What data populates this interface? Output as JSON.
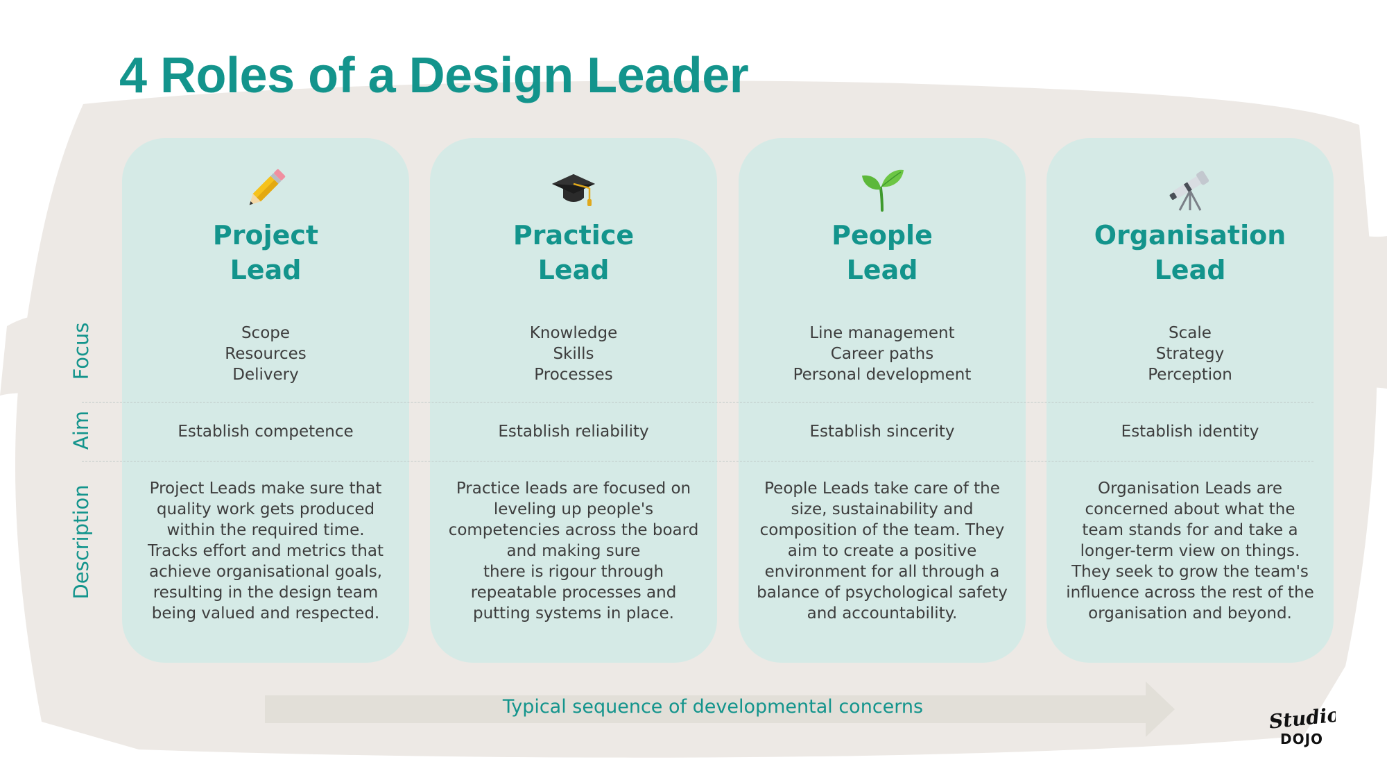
{
  "title": "4 Roles of a Design Leader",
  "row_labels": {
    "focus": "Focus",
    "aim": "Aim",
    "description": "Description"
  },
  "roles": [
    {
      "icon": "pencil-icon",
      "name_lines": [
        "Project",
        "Lead"
      ],
      "focus": [
        "Scope",
        "Resources",
        "Delivery"
      ],
      "aim": "Establish competence",
      "description_lines": [
        "Project Leads make sure that",
        "quality work gets produced",
        "within the required time.",
        "Tracks effort and metrics that",
        "achieve organisational goals,",
        "resulting in the design team",
        "being valued and respected."
      ]
    },
    {
      "icon": "graduation-cap-icon",
      "name_lines": [
        "Practice",
        "Lead"
      ],
      "focus": [
        "Knowledge",
        "Skills",
        "Processes"
      ],
      "aim": "Establish reliability",
      "description_lines": [
        "Practice leads are focused on",
        "leveling up people's",
        "competencies across the board",
        "and making sure",
        "there is rigour through",
        "repeatable processes and",
        "putting systems in place."
      ]
    },
    {
      "icon": "seedling-icon",
      "name_lines": [
        "People",
        "Lead"
      ],
      "focus": [
        "Line management",
        "Career paths",
        "Personal development"
      ],
      "aim": "Establish sincerity",
      "description_lines": [
        "People Leads take care of the",
        "size, sustainability and",
        "composition of the team. They",
        "aim to create a positive",
        "environment for all through a",
        "balance of psychological safety",
        "and accountability."
      ]
    },
    {
      "icon": "telescope-icon",
      "name_lines": [
        "Organisation",
        "Lead"
      ],
      "focus": [
        "Scale",
        "Strategy",
        "Perception"
      ],
      "aim": "Establish identity",
      "description_lines": [
        "Organisation Leads are",
        "concerned about what the",
        "team stands for and take a",
        "longer-term view on things.",
        "They seek to grow the team's",
        "influence across the rest of the",
        "organisation and beyond."
      ]
    }
  ],
  "arrow_label": "Typical sequence of developmental concerns",
  "logo": {
    "line1": "Studio",
    "line2": "DOJO"
  },
  "colors": {
    "accent": "#13948c",
    "card": "#d5eae6",
    "arrow": "#e2dfd8",
    "text": "#3d3d3d"
  }
}
